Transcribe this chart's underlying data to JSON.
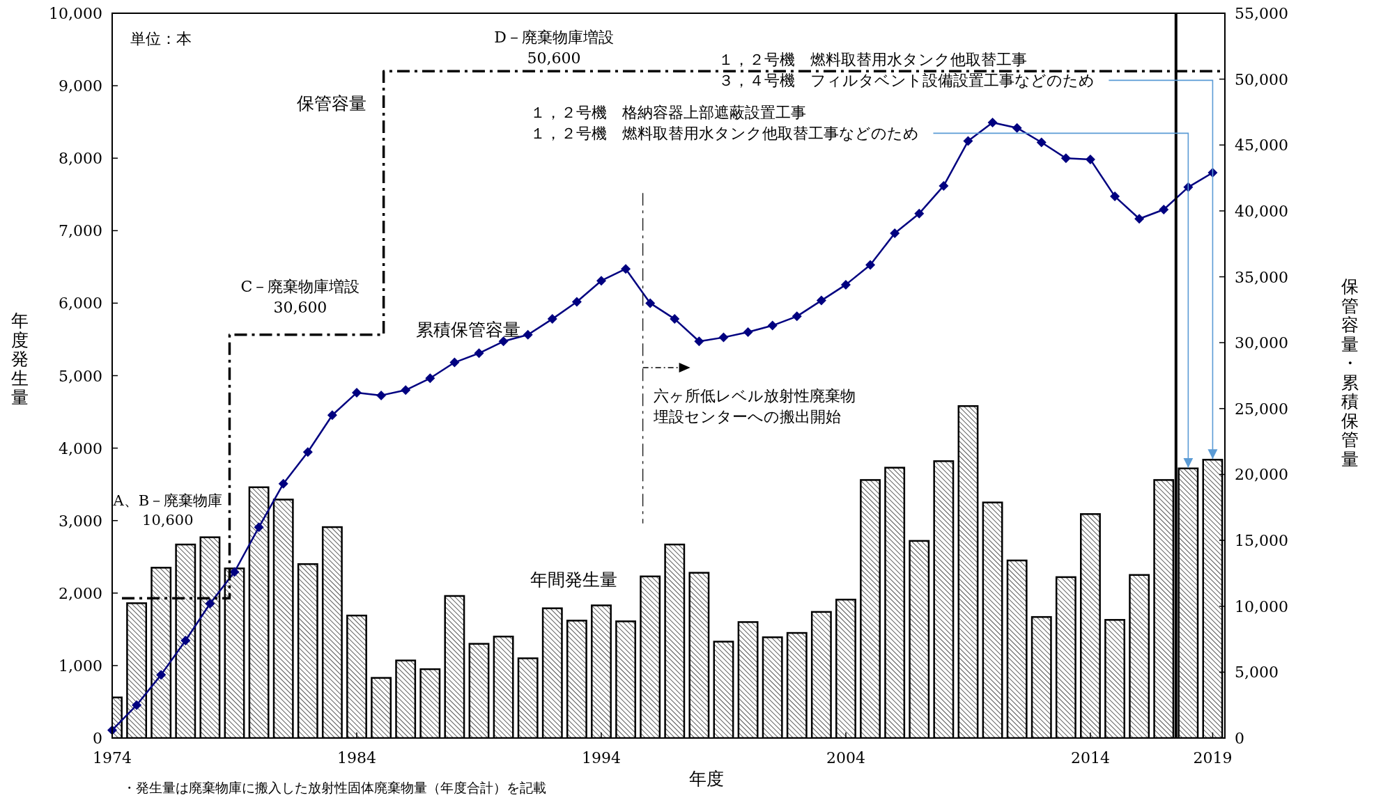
{
  "chart_data": {
    "type": "bar",
    "xlabel": "年度",
    "ylabel": "年度発生量",
    "y2label": "保管容量・累積保管量",
    "x": [
      1974,
      1975,
      1976,
      1977,
      1978,
      1979,
      1980,
      1981,
      1982,
      1983,
      1984,
      1985,
      1986,
      1987,
      1988,
      1989,
      1990,
      1991,
      1992,
      1993,
      1994,
      1995,
      1996,
      1997,
      1998,
      1999,
      2000,
      2001,
      2002,
      2003,
      2004,
      2005,
      2006,
      2007,
      2008,
      2009,
      2010,
      2011,
      2012,
      2013,
      2014,
      2015,
      2016,
      2017,
      2018,
      2019
    ],
    "xlim": [
      1974,
      2019.5
    ],
    "xticks": [
      1974,
      1984,
      1994,
      2004,
      2014,
      2019
    ],
    "ylim": [
      0,
      10000
    ],
    "yticks": [
      0,
      {
        "value": 1000,
        "label": "1,000"
      },
      {
        "value": 2000,
        "label": "2,000"
      },
      {
        "value": 3000,
        "label": "3,000"
      },
      {
        "value": 4000,
        "label": "4,000"
      },
      {
        "value": 5000,
        "label": "5,000"
      },
      {
        "value": 6000,
        "label": "6,000"
      },
      {
        "value": 7000,
        "label": "7,000"
      },
      {
        "value": 8000,
        "label": "8,000"
      },
      {
        "value": 9000,
        "label": "9,000"
      },
      {
        "value": 10000,
        "label": "10,000"
      }
    ],
    "y2lim": [
      0,
      55000
    ],
    "y2ticks": [
      0,
      {
        "value": 5000,
        "label": "5,000"
      },
      {
        "value": 10000,
        "label": "10,000"
      },
      {
        "value": 15000,
        "label": "15,000"
      },
      {
        "value": 20000,
        "label": "20,000"
      },
      {
        "value": 25000,
        "label": "25,000"
      },
      {
        "value": 30000,
        "label": "30,000"
      },
      {
        "value": 35000,
        "label": "35,000"
      },
      {
        "value": 40000,
        "label": "40,000"
      },
      {
        "value": 45000,
        "label": "45,000"
      },
      {
        "value": 50000,
        "label": "50,000"
      },
      {
        "value": 55000,
        "label": "55,000"
      }
    ],
    "series": [
      {
        "name": "年間発生量",
        "color": "#000000",
        "values": [
          560,
          1860,
          2350,
          2670,
          2770,
          2340,
          3460,
          3290,
          2400,
          2910,
          1690,
          830,
          1070,
          950,
          1960,
          1300,
          1400,
          1100,
          1790,
          1620,
          1830,
          1610,
          2230,
          2670,
          2280,
          1330,
          1600,
          1390,
          1450,
          1740,
          1910,
          3560,
          3730,
          2720,
          3820,
          4580,
          3250,
          2450,
          1670,
          2220,
          3090,
          1630,
          2250,
          3560,
          3720,
          3840
        ]
      },
      {
        "name": "累積保管容量",
        "type": "line",
        "axis": "y2",
        "color": "#000080",
        "marker": "diamond",
        "values": [
          600,
          2500,
          4800,
          7400,
          10200,
          12600,
          16000,
          19300,
          21700,
          24500,
          26200,
          26000,
          26400,
          27300,
          28500,
          29200,
          30100,
          30600,
          31800,
          33100,
          34700,
          35600,
          33000,
          31800,
          30100,
          30400,
          30800,
          31300,
          32000,
          33200,
          34400,
          35900,
          38300,
          39800,
          41900,
          45300,
          46700,
          46300,
          45200,
          44000,
          43900,
          41100,
          39400,
          40100,
          41800,
          42900
        ]
      },
      {
        "name": "保管容量",
        "type": "step",
        "axis": "y2",
        "color": "#000000",
        "line_style": "dashdot",
        "x": [
          1974.4,
          1978.8,
          1985.1,
          2019.5
        ],
        "values": [
          10600,
          30600,
          50600,
          50600
        ]
      }
    ],
    "ref_lines": [
      {
        "axis": "x",
        "value": 1995.7,
        "label": "六ヶ所低レベル放射性廃棄物埋設センターへの搬出開始",
        "line_style": "dashdot",
        "color": "#000000"
      },
      {
        "axis": "x",
        "value": 2017.5,
        "line_style": "solid",
        "color": "#000000"
      }
    ],
    "annotations": [
      "単位：本",
      "A、B－廃棄物庫\n10,600",
      "C－廃棄物庫増設\n30,600",
      "D－廃棄物庫増設\n50,600",
      {
        "text": "１，２号機　格納容器上部遮蔽設置工事１，２号機　燃料取替用水タンク他取替工事などのため",
        "x": 2018,
        "y": 3720
      },
      {
        "text": "１，２号機　燃料取替用水タンク他取替工事３，４号機　フィルタベント設備設置工事などのため",
        "x": 2019,
        "y": 3840
      },
      "・発生量は廃棄物庫に搬入した放射性固体廃棄物量（年度合計）を記載"
    ]
  }
}
